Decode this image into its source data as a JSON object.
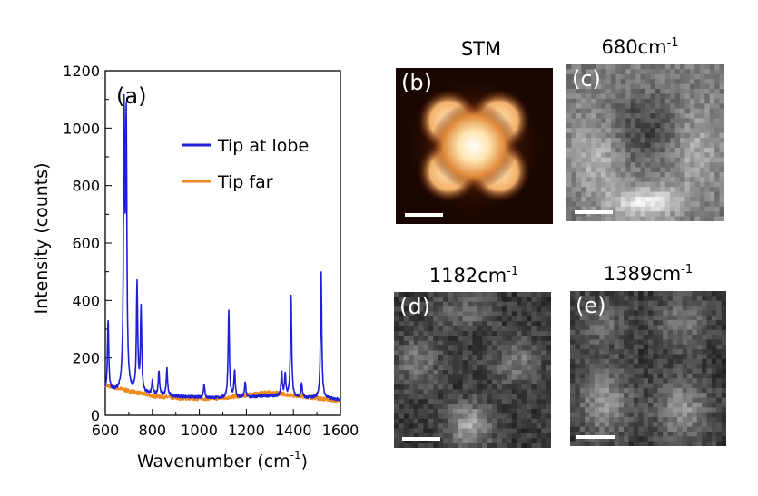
{
  "chart_data": {
    "type": "line",
    "panel_label": "(a)",
    "xlabel": "Wavenumber (cm",
    "xlabel_sup": "-1",
    "xlabel_tail": ")",
    "ylabel": "Intensity (counts)",
    "xlim": [
      600,
      1600
    ],
    "ylim": [
      0,
      1200
    ],
    "xticks": [
      600,
      800,
      1000,
      1200,
      1400,
      1600
    ],
    "yticks": [
      0,
      200,
      400,
      600,
      800,
      1000,
      1200
    ],
    "legend_position": "upper-right",
    "series": [
      {
        "name": "Tip at lobe",
        "color": "#1f1fd6",
        "baseline": [
          [
            600,
            85
          ],
          [
            700,
            80
          ],
          [
            800,
            72
          ],
          [
            900,
            66
          ],
          [
            1000,
            62
          ],
          [
            1100,
            60
          ],
          [
            1200,
            62
          ],
          [
            1300,
            68
          ],
          [
            1400,
            62
          ],
          [
            1500,
            60
          ],
          [
            1600,
            55
          ]
        ],
        "peaks": [
          {
            "x": 612,
            "y": 330
          },
          {
            "x": 680,
            "y": 1010
          },
          {
            "x": 689,
            "y": 985
          },
          {
            "x": 735,
            "y": 450
          },
          {
            "x": 752,
            "y": 365
          },
          {
            "x": 800,
            "y": 115
          },
          {
            "x": 828,
            "y": 155
          },
          {
            "x": 862,
            "y": 160
          },
          {
            "x": 1020,
            "y": 110
          },
          {
            "x": 1125,
            "y": 360
          },
          {
            "x": 1150,
            "y": 155
          },
          {
            "x": 1195,
            "y": 115
          },
          {
            "x": 1350,
            "y": 150
          },
          {
            "x": 1365,
            "y": 140
          },
          {
            "x": 1390,
            "y": 415
          },
          {
            "x": 1435,
            "y": 110
          },
          {
            "x": 1518,
            "y": 495
          }
        ]
      },
      {
        "name": "Tip far",
        "color": "#f08a1c",
        "baseline": [
          [
            600,
            105
          ],
          [
            700,
            85
          ],
          [
            800,
            68
          ],
          [
            900,
            60
          ],
          [
            1000,
            58
          ],
          [
            1100,
            60
          ],
          [
            1200,
            70
          ],
          [
            1300,
            80
          ],
          [
            1400,
            70
          ],
          [
            1500,
            60
          ],
          [
            1600,
            50
          ]
        ],
        "peaks": []
      }
    ]
  },
  "image_panels": [
    {
      "label": "(b)",
      "title": "STM",
      "title_sup": "",
      "kind": "stm"
    },
    {
      "label": "(c)",
      "title": "680cm",
      "title_sup": "-1",
      "kind": "map680"
    },
    {
      "label": "(d)",
      "title": "1182cm",
      "title_sup": "-1",
      "kind": "map1182"
    },
    {
      "label": "(e)",
      "title": "1389cm",
      "title_sup": "-1",
      "kind": "map1389"
    }
  ]
}
